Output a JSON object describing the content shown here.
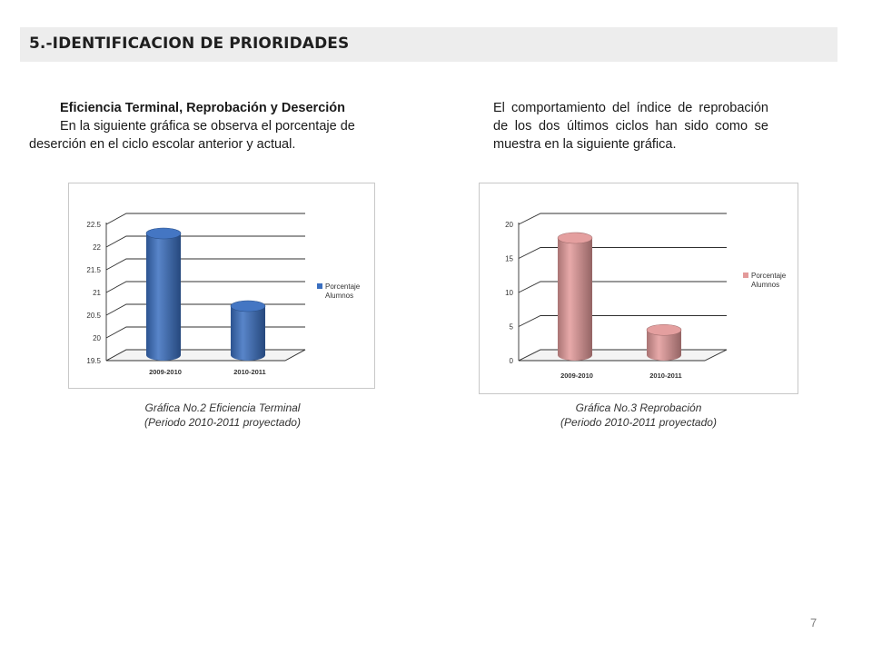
{
  "header": {
    "title": "5.-IDENTIFICACION DE PRIORIDADES"
  },
  "left_column": {
    "heading": "Eficiencia Terminal, Reprobación y Deserción",
    "paragraph": "En la siguiente gráfica se observa el porcentaje de deserción en el ciclo escolar anterior y actual."
  },
  "right_column": {
    "paragraph": "El comportamiento del índice de reprobación de los dos últimos ciclos han sido como se muestra en la siguiente gráfica."
  },
  "chart_data": [
    {
      "type": "bar",
      "categories": [
        "2009-2010",
        "2010-2011"
      ],
      "series": [
        {
          "name": "Porcentaje Alumnos",
          "values": [
            22.3,
            20.7
          ]
        }
      ],
      "yticks": [
        "19.5",
        "20",
        "20.5",
        "21",
        "21.5",
        "22",
        "22.5"
      ],
      "ylim": [
        19.5,
        22.5
      ],
      "grid": true,
      "legend": "right",
      "color": "#3a6fc0",
      "caption_line1": "Gráfica No.2 Eficiencia Terminal",
      "caption_line2": "(Periodo 2010-2011 proyectado)"
    },
    {
      "type": "bar",
      "categories": [
        "2009-2010",
        "2010-2011"
      ],
      "series": [
        {
          "name": "Porcentaje Alumnos",
          "values": [
            18,
            4.5
          ]
        }
      ],
      "yticks": [
        "0",
        "5",
        "10",
        "15",
        "20"
      ],
      "ylim": [
        0,
        20
      ],
      "grid": true,
      "legend": "right",
      "color": "#e39a9a",
      "caption_line1": "Gráfica No.3 Reprobación",
      "caption_line2": "(Periodo 2010-2011 proyectado)"
    }
  ],
  "legend_lines": [
    "Porcentaje",
    "Alumnos"
  ],
  "page_number": "7"
}
